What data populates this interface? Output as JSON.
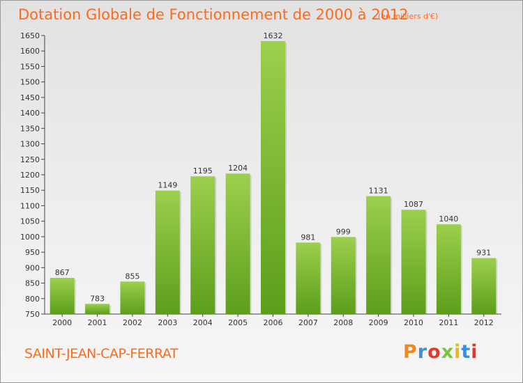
{
  "title": "Dotation Globale de Fonctionnement de 2000 à 2012",
  "unit_note": "(en milliers d'€)",
  "city": "SAINT-JEAN-CAP-FERRAT",
  "logo": {
    "text": "Proxiti"
  },
  "colors": {
    "accent": "#ff6a1a",
    "bar_top": "#9ccf4e",
    "bar_bottom": "#5c9e1a",
    "axis": "#444444"
  },
  "chart_data": {
    "type": "bar",
    "title": "Dotation Globale de Fonctionnement de 2000 à 2012",
    "categories": [
      "2000",
      "2001",
      "2002",
      "2003",
      "2004",
      "2005",
      "2006",
      "2007",
      "2008",
      "2009",
      "2010",
      "2011",
      "2012"
    ],
    "values": [
      867,
      783,
      855,
      1149,
      1195,
      1204,
      1632,
      981,
      999,
      1131,
      1087,
      1040,
      931
    ],
    "ylim": [
      750,
      1650
    ],
    "yticks": [
      750,
      800,
      850,
      900,
      950,
      1000,
      1050,
      1100,
      1150,
      1200,
      1250,
      1300,
      1350,
      1400,
      1450,
      1500,
      1550,
      1600,
      1650
    ],
    "grid": false,
    "data_labels": true
  }
}
